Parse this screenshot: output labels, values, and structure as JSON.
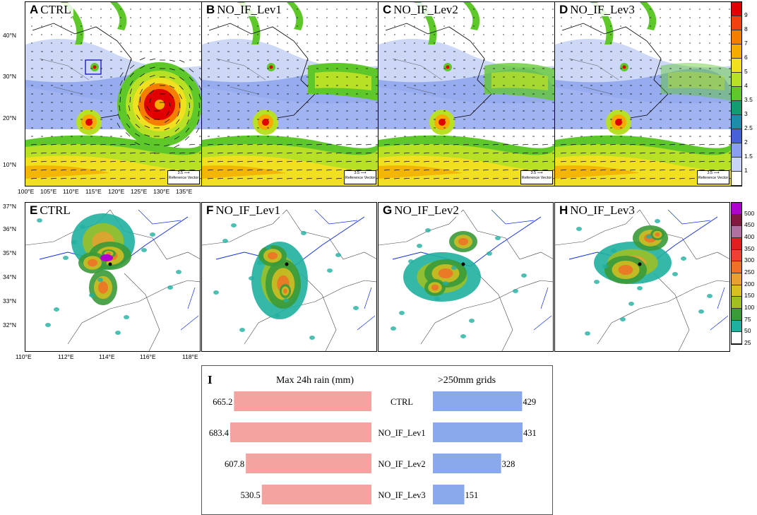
{
  "wind_panels": [
    {
      "letter": "A",
      "title": "CTRL"
    },
    {
      "letter": "B",
      "title": "NO_IF_Lev1"
    },
    {
      "letter": "C",
      "title": "NO_IF_Lev2"
    },
    {
      "letter": "D",
      "title": "NO_IF_Lev3"
    }
  ],
  "rain_panels": [
    {
      "letter": "E",
      "title": "CTRL"
    },
    {
      "letter": "F",
      "title": "NO_IF_Lev1"
    },
    {
      "letter": "G",
      "title": "NO_IF_Lev2"
    },
    {
      "letter": "H",
      "title": "NO_IF_Lev3"
    }
  ],
  "wind_lat_ticks": [
    "40°N",
    "30°N",
    "20°N",
    "10°N"
  ],
  "wind_lon_ticks": [
    "100°E",
    "105°E",
    "110°E",
    "115°E",
    "120°E",
    "125°E",
    "130°E",
    "135°E"
  ],
  "rain_lat_ticks": [
    "37°N",
    "36°N",
    "35°N",
    "34°N",
    "33°N",
    "32°N"
  ],
  "rain_lon_ticks": [
    "110°E",
    "112°E",
    "114°E",
    "116°E",
    "118°E"
  ],
  "reference_vector": {
    "value": "3.5",
    "label": "Reference Vector"
  },
  "wind_colorbar": {
    "labels": [
      "9",
      "8",
      "7",
      "6",
      "5",
      "4",
      "3.5",
      "3",
      "2.5",
      "2",
      "1.5",
      "1"
    ],
    "colors": [
      "#e00000",
      "#f24010",
      "#f57d00",
      "#f5ab00",
      "#f0e020",
      "#b8e024",
      "#5ec82a",
      "#139c70",
      "#1c8ea8",
      "#4860d8",
      "#8aa0ec",
      "#c8d4f6",
      "#ffffff"
    ]
  },
  "rain_colorbar": {
    "labels": [
      "500",
      "450",
      "400",
      "350",
      "300",
      "250",
      "200",
      "150",
      "100",
      "75",
      "50",
      "25"
    ],
    "colors": [
      "#b000d0",
      "#801840",
      "#b070a0",
      "#e02020",
      "#f04030",
      "#f07028",
      "#e8a030",
      "#d8c020",
      "#a0c020",
      "#3a9a38",
      "#20b0a0",
      "#ffffff"
    ]
  },
  "chart_data": {
    "type": "bar",
    "label": "I",
    "categories": [
      "CTRL",
      "NO_IF_Lev1",
      "NO_IF_Lev2",
      "NO_IF_Lev3"
    ],
    "series": [
      {
        "name": "Max 24h rain (mm)",
        "values": [
          665.2,
          683.4,
          607.8,
          530.5
        ],
        "color": "#f5a3a0"
      },
      {
        "name": ">250mm grids",
        "values": [
          429,
          431,
          328,
          151
        ],
        "color": "#8aa8ec"
      }
    ]
  }
}
